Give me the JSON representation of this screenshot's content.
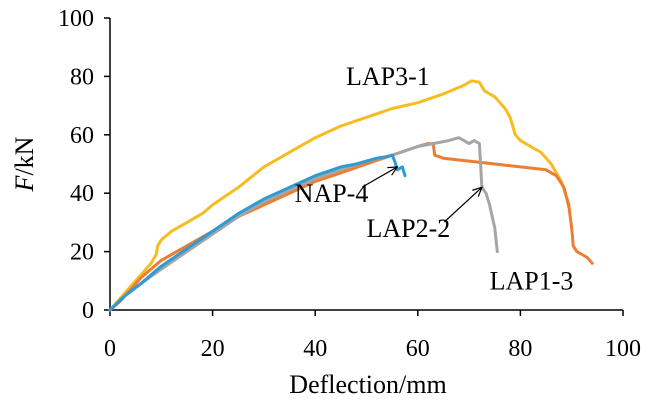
{
  "chart_data": {
    "type": "line",
    "title": "",
    "xlabel": "Deflection/mm",
    "ylabel": {
      "symbol": "F",
      "unit": "/kN"
    },
    "xlim": [
      0,
      100
    ],
    "ylim": [
      0,
      100
    ],
    "xticks": [
      0,
      20,
      40,
      60,
      80,
      100
    ],
    "yticks": [
      0,
      20,
      40,
      60,
      80,
      100
    ],
    "grid": false,
    "series": [
      {
        "name": "LAP3-1",
        "color": "#F5BD1F",
        "x": [
          0,
          2,
          4,
          6,
          8,
          9,
          9.3,
          10,
          12,
          15,
          18,
          20,
          25,
          30,
          35,
          40,
          45,
          50,
          55,
          60,
          65,
          69,
          70.5,
          72,
          73,
          75,
          77,
          78,
          79,
          80,
          82,
          84,
          86,
          88,
          89.5
        ],
        "y": [
          0,
          4,
          8,
          12,
          16,
          19,
          22,
          24,
          27,
          30,
          33,
          36,
          42,
          49,
          54,
          59,
          63,
          66,
          69,
          71,
          74,
          77,
          78.5,
          78,
          75,
          73,
          69,
          66,
          60,
          58,
          56,
          54,
          50,
          44,
          36
        ]
      },
      {
        "name": "LAP1-3",
        "color": "#ED7D31",
        "x": [
          0,
          2,
          4,
          6,
          8,
          10,
          15,
          20,
          25,
          30,
          35,
          40,
          45,
          50,
          55,
          60,
          62,
          63,
          63.3,
          65,
          70,
          75,
          80,
          85,
          87,
          88.5,
          89.5,
          90,
          90.3,
          91,
          92,
          93,
          94
        ],
        "y": [
          0,
          3,
          7,
          11,
          14,
          17,
          22,
          27,
          32,
          36,
          40,
          44,
          47,
          50,
          53,
          56,
          57,
          57,
          53,
          52,
          51,
          50,
          49,
          48,
          46,
          42,
          35,
          28,
          22,
          20,
          19,
          18,
          16
        ]
      },
      {
        "name": "LAP2-2",
        "color": "#A5A5A5",
        "x": [
          0,
          3,
          6,
          10,
          15,
          20,
          25,
          30,
          35,
          40,
          45,
          50,
          55,
          60,
          63,
          66,
          68,
          69,
          70,
          71,
          72,
          72.5,
          73.3,
          74,
          75,
          75.5
        ],
        "y": [
          0,
          5,
          9,
          14,
          20,
          26,
          32,
          37,
          41,
          45,
          48,
          51,
          53,
          56,
          57,
          58,
          59,
          58,
          57,
          58,
          57,
          42,
          40,
          36,
          28,
          20
        ]
      },
      {
        "name": "NAP-4",
        "color": "#2E9BD6",
        "x": [
          0,
          3,
          6,
          10,
          15,
          20,
          25,
          30,
          35,
          40,
          45,
          48,
          50,
          52,
          54,
          55,
          55.5,
          56,
          57,
          57.5
        ],
        "y": [
          0,
          5,
          9,
          15,
          21,
          27,
          33,
          38,
          42,
          46,
          49,
          50,
          51,
          52,
          52.5,
          53,
          51,
          48,
          49,
          46
        ]
      }
    ],
    "annotations": [
      {
        "text": "LAP3-1",
        "at": [
          46,
          77
        ]
      },
      {
        "text": "NAP-4",
        "at": [
          36,
          37
        ],
        "arrow_to": [
          56,
          49
        ]
      },
      {
        "text": "LAP2-2",
        "at": [
          50,
          25
        ],
        "arrow_to": [
          72.5,
          42
        ]
      },
      {
        "text": "LAP1-3",
        "at": [
          74,
          7
        ]
      }
    ]
  }
}
